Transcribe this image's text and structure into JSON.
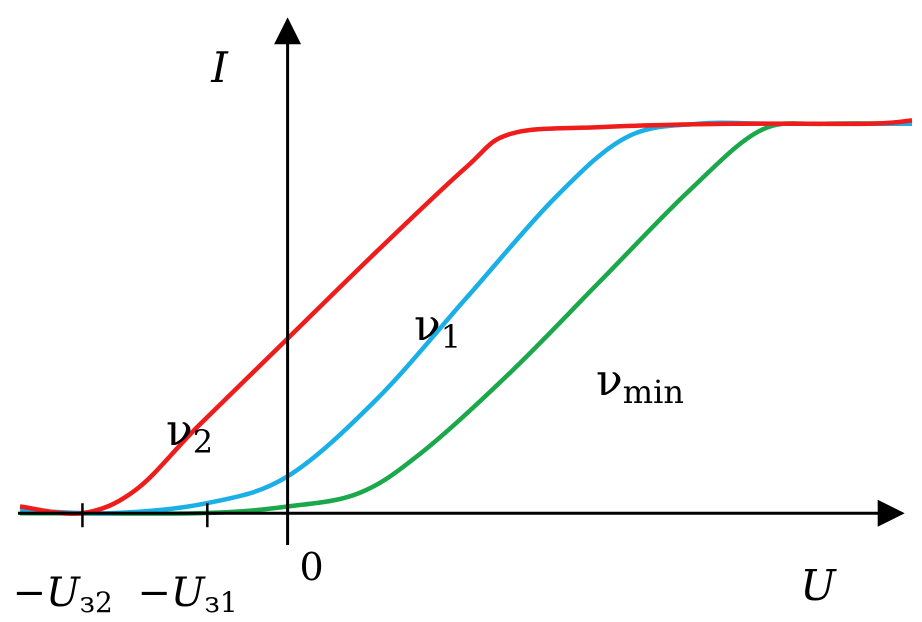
{
  "chart_data": {
    "type": "line",
    "title": "",
    "xlabel": "U",
    "ylabel": "I",
    "origin_label": "0",
    "x_ticks": [
      {
        "x": -2.3,
        "label": "−U",
        "sub": "з2"
      },
      {
        "x": -0.9,
        "label": "−U",
        "sub": "з1"
      }
    ],
    "xlim": [
      -3.0,
      7.0
    ],
    "ylim": [
      -0.05,
      1.35
    ],
    "grid": false,
    "legend": "none",
    "series": [
      {
        "name": "ν2",
        "label_main": "ν",
        "label_sub": "2",
        "color": "#ef1c1c",
        "points": [
          [
            -3.0,
            0.02
          ],
          [
            -2.3,
            0.0
          ],
          [
            -1.7,
            0.07
          ],
          [
            -1.0,
            0.26
          ],
          [
            0.0,
            0.52
          ],
          [
            1.0,
            0.78
          ],
          [
            2.0,
            1.03
          ],
          [
            2.5,
            1.13
          ],
          [
            3.5,
            1.15
          ],
          [
            5.0,
            1.16
          ],
          [
            6.5,
            1.16
          ],
          [
            7.0,
            1.17
          ]
        ]
      },
      {
        "name": "ν1",
        "label_main": "ν",
        "label_sub": "1",
        "color": "#1aafe6",
        "points": [
          [
            -3.0,
            0.01
          ],
          [
            -2.0,
            0.0
          ],
          [
            -0.9,
            0.03
          ],
          [
            0.0,
            0.11
          ],
          [
            1.0,
            0.34
          ],
          [
            2.0,
            0.64
          ],
          [
            3.0,
            0.94
          ],
          [
            3.8,
            1.12
          ],
          [
            4.6,
            1.16
          ],
          [
            5.5,
            1.16
          ],
          [
            7.0,
            1.16
          ]
        ]
      },
      {
        "name": "νmin",
        "label_main": "ν",
        "label_sub": "min",
        "color": "#1aa84a",
        "points": [
          [
            -3.0,
            0.0
          ],
          [
            -1.0,
            0.0
          ],
          [
            0.0,
            0.02
          ],
          [
            0.8,
            0.06
          ],
          [
            1.5,
            0.18
          ],
          [
            2.5,
            0.42
          ],
          [
            3.5,
            0.69
          ],
          [
            4.5,
            0.96
          ],
          [
            5.3,
            1.14
          ],
          [
            6.0,
            1.16
          ],
          [
            7.0,
            1.16
          ]
        ]
      }
    ]
  }
}
